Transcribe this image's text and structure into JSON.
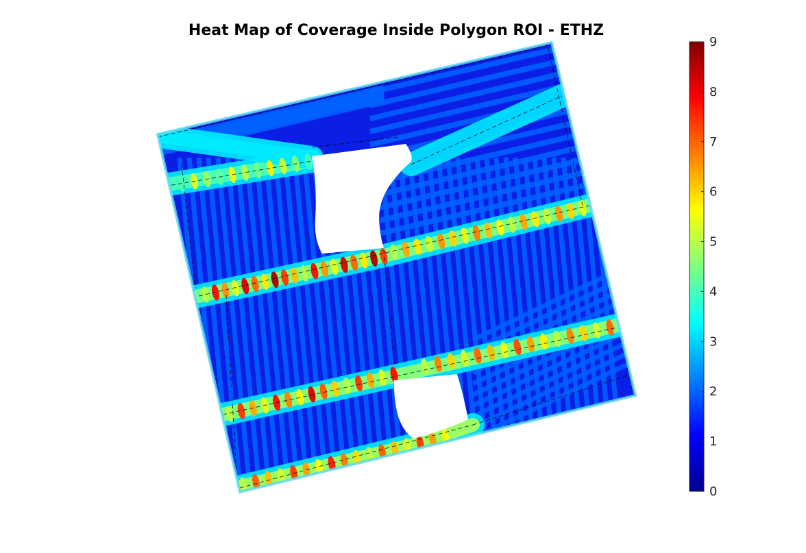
{
  "chart_data": {
    "type": "heatmap",
    "title": "Heat Map of Coverage Inside Polygon ROI - ETHZ",
    "xlabel": "",
    "ylabel": "",
    "colormap": "jet",
    "colorbar": {
      "clim": [
        0,
        9
      ],
      "ticks": [
        0,
        1,
        2,
        3,
        4,
        5,
        6,
        7,
        8,
        9
      ],
      "tick_labels": [
        "0",
        "1",
        "2",
        "3",
        "4",
        "5",
        "6",
        "7",
        "8",
        "9"
      ],
      "placement": "right"
    },
    "background_coverage_min": 0,
    "stripe_coverage_values": [
      1,
      2
    ],
    "overlap_band_coverage_range": [
      4,
      9
    ],
    "axes_visible": false,
    "grid": false,
    "flight_path_style": "dashed black"
  }
}
